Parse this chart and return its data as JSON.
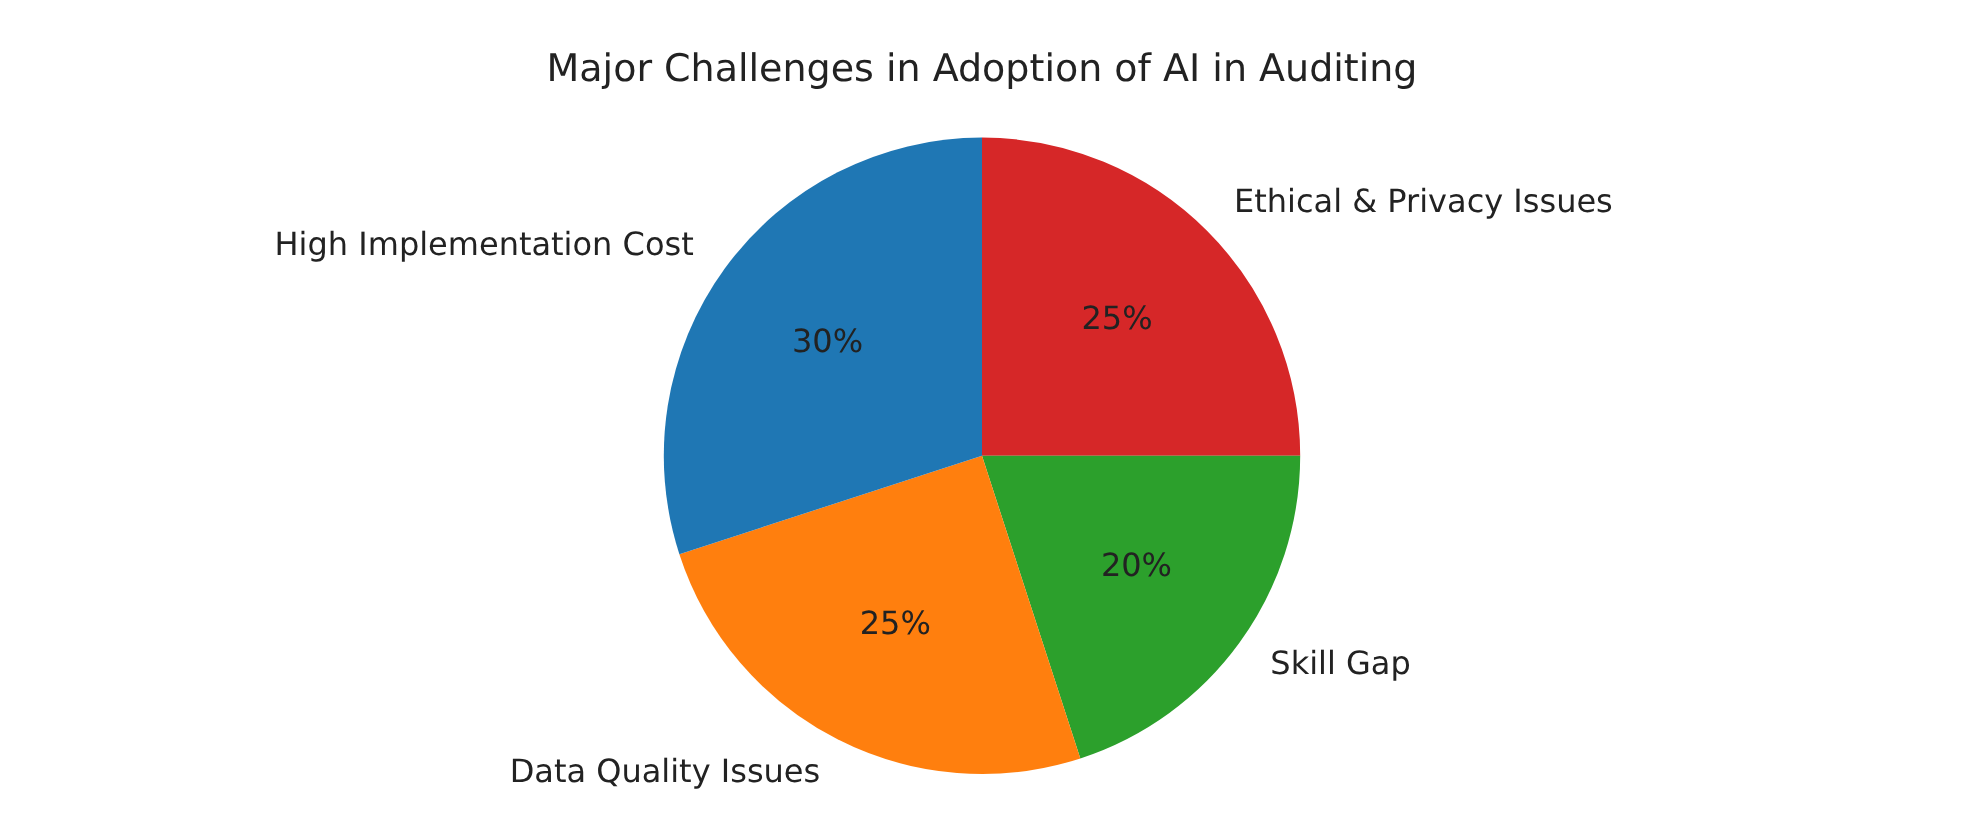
{
  "chart_data": {
    "type": "pie",
    "title": "Major Challenges in Adoption of AI in Auditing",
    "categories": [
      "Ethical & Privacy Issues",
      "Skill Gap",
      "Data Quality Issues",
      "High Implementation Cost"
    ],
    "values": [
      25,
      20,
      25,
      30
    ],
    "colors": [
      "#d62728",
      "#2ca02c",
      "#ff7f0e",
      "#1f77b4"
    ],
    "value_labels": [
      "25%",
      "20%",
      "25%",
      "30%"
    ],
    "legend": false
  }
}
